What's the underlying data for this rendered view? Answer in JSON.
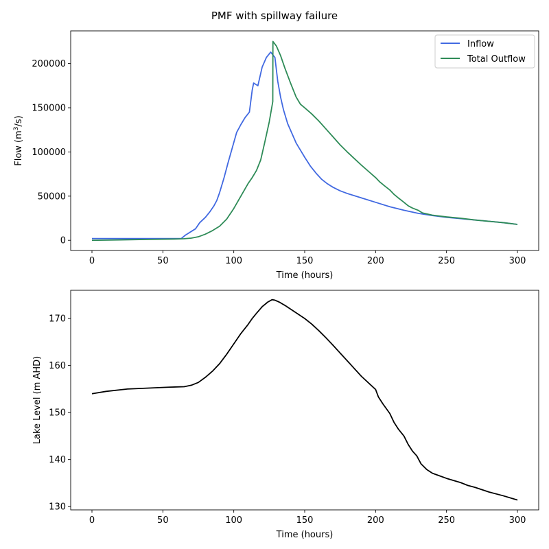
{
  "title": "PMF with spillway failure",
  "chart_data": [
    {
      "type": "line",
      "xlabel": "Time (hours)",
      "ylabel_main": "Flow (m",
      "ylabel_sup": "3",
      "ylabel_tail": "/s)",
      "xlim": [
        -15,
        315
      ],
      "ylim": [
        -11500,
        237000
      ],
      "xticks": [
        0,
        50,
        100,
        150,
        200,
        250,
        300
      ],
      "yticks": [
        0,
        50000,
        100000,
        150000,
        200000
      ],
      "legend_position": "top-right",
      "series": [
        {
          "name": "Inflow",
          "color": "#4169e1",
          "x": [
            0,
            20,
            40,
            63,
            66,
            70,
            73,
            76,
            80,
            83,
            86,
            88,
            90,
            93,
            96,
            99,
            102,
            105,
            108,
            111,
            113,
            114,
            117,
            120,
            123,
            126,
            129,
            131,
            133,
            135,
            138,
            141,
            144,
            147,
            150,
            154,
            158,
            162,
            166,
            170,
            175,
            180,
            190,
            200,
            210,
            220,
            230,
            240,
            250,
            260,
            270,
            280,
            290,
            300
          ],
          "y": [
            2000,
            2000,
            2000,
            2000,
            6000,
            10000,
            13000,
            20000,
            26000,
            32000,
            39000,
            45000,
            54000,
            70000,
            88000,
            105000,
            122000,
            131000,
            139000,
            145000,
            170000,
            178000,
            175000,
            196000,
            207000,
            213000,
            207000,
            180000,
            162000,
            148000,
            132000,
            121000,
            110000,
            102000,
            94000,
            84000,
            76000,
            69000,
            64000,
            60000,
            56000,
            53000,
            48000,
            43000,
            38000,
            34000,
            30500,
            28000,
            26000,
            24500,
            23000,
            21500,
            20000,
            18000
          ]
        },
        {
          "name": "Total Outflow",
          "color": "#2e8b57",
          "x": [
            0,
            20,
            40,
            60,
            65,
            70,
            75,
            80,
            85,
            90,
            95,
            100,
            105,
            110,
            113,
            116,
            119,
            122,
            125,
            127.5,
            127.6,
            130,
            133,
            136,
            140,
            144,
            147,
            150,
            155,
            160,
            165,
            170,
            175,
            180,
            185,
            190,
            195,
            200,
            203,
            206,
            210,
            213,
            216,
            220,
            223,
            226,
            230,
            233,
            240,
            250,
            260,
            270,
            280,
            290,
            300
          ],
          "y": [
            0,
            500,
            1000,
            1500,
            1800,
            2500,
            4000,
            7000,
            11000,
            16000,
            24000,
            36000,
            50000,
            64000,
            71000,
            79000,
            91000,
            112000,
            134000,
            157000,
            225000,
            220000,
            209000,
            195000,
            178000,
            162000,
            154000,
            150000,
            143000,
            135000,
            126000,
            117000,
            108000,
            100000,
            92500,
            85000,
            78000,
            71000,
            66000,
            62000,
            57000,
            52000,
            48000,
            43000,
            39000,
            36500,
            34000,
            31000,
            28500,
            26500,
            25000,
            23000,
            21500,
            20000,
            18000
          ]
        }
      ]
    },
    {
      "type": "line",
      "xlabel": "Time (hours)",
      "ylabel": "Lake Level (m AHD)",
      "xlim": [
        -15,
        315
      ],
      "ylim": [
        129.3,
        176.0
      ],
      "xticks": [
        0,
        50,
        100,
        150,
        200,
        250,
        300
      ],
      "yticks": [
        130,
        140,
        150,
        160,
        170
      ],
      "series": [
        {
          "name": "Lake Level",
          "color": "#000000",
          "x": [
            0,
            10,
            25,
            40,
            55,
            65,
            70,
            75,
            80,
            85,
            90,
            95,
            100,
            105,
            110,
            113,
            116,
            120,
            124,
            127,
            129,
            132,
            136,
            140,
            145,
            150,
            155,
            160,
            165,
            170,
            180,
            190,
            200,
            202,
            205,
            210,
            213,
            216,
            220,
            223,
            226,
            229,
            232,
            236,
            240,
            250,
            260,
            265,
            270,
            280,
            290,
            300
          ],
          "y": [
            154,
            154.5,
            155,
            155.2,
            155.4,
            155.5,
            155.8,
            156.4,
            157.5,
            158.8,
            160.4,
            162.4,
            164.6,
            166.8,
            168.7,
            170,
            171.1,
            172.5,
            173.5,
            174,
            173.9,
            173.5,
            172.8,
            172,
            171,
            170,
            168.8,
            167.4,
            165.9,
            164.3,
            161,
            157.7,
            154.9,
            153.3,
            151.9,
            149.8,
            147.9,
            146.5,
            145,
            143.2,
            141.8,
            140.8,
            139.1,
            137.9,
            137.1,
            136,
            135.1,
            134.5,
            134.1,
            133.1,
            132.3,
            131.4
          ]
        }
      ]
    }
  ]
}
